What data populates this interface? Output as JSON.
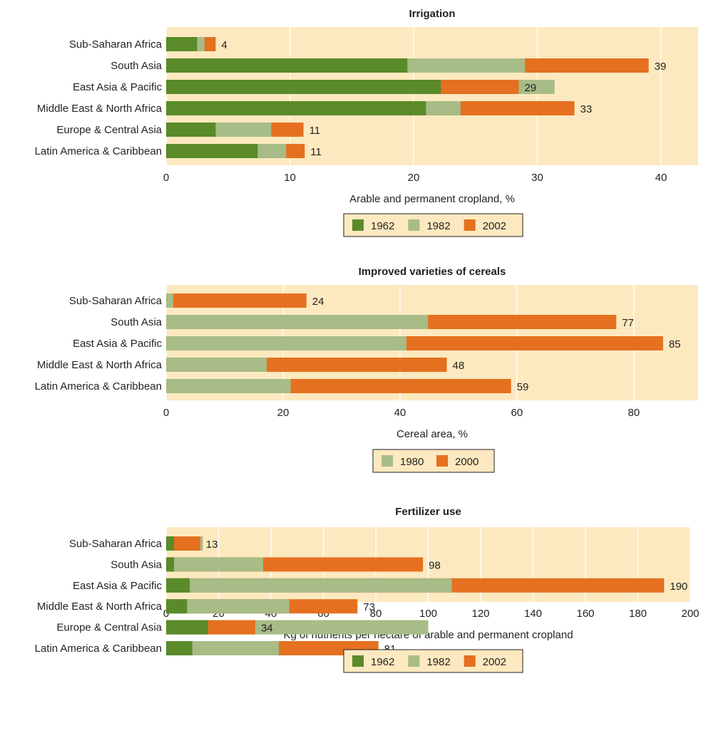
{
  "colors": {
    "plot_bg": "#fde9bf",
    "grid": "#ffffff",
    "dark_green": "#5a8a2a",
    "light_green": "#a7bc86",
    "orange": "#e5701f",
    "legend_border": "#231f20"
  },
  "chart_data": [
    {
      "type": "bar",
      "orientation": "horizontal",
      "title": "Irrigation",
      "xlabel": "Arable and permanent cropland, %",
      "xlim": [
        0,
        43
      ],
      "xticks": [
        0,
        10,
        20,
        30,
        40
      ],
      "grid": true,
      "legend_position": "bottom-center",
      "categories": [
        "Sub-Saharan Africa",
        "South Asia",
        "East Asia & Pacific",
        "Middle East & North Africa",
        "Europe & Central Asia",
        "Latin America & Caribbean"
      ],
      "series": [
        {
          "name": "1962",
          "color_key": "dark_green",
          "values": [
            2.5,
            19.5,
            22.2,
            21.0,
            4.0,
            7.4
          ]
        },
        {
          "name": "1982",
          "color_key": "light_green",
          "values": [
            3.1,
            29.0,
            31.4,
            23.8,
            8.5,
            9.7
          ]
        },
        {
          "name": "2002",
          "color_key": "orange",
          "values": [
            4.0,
            39.0,
            28.5,
            33.0,
            11.1,
            11.2
          ]
        }
      ],
      "value_labels": [
        "4",
        "39",
        "29",
        "33",
        "11",
        "11"
      ]
    },
    {
      "type": "bar",
      "orientation": "horizontal",
      "title": "Improved varieties of cereals",
      "xlabel": "Cereal area, %",
      "xlim": [
        0,
        91
      ],
      "xticks": [
        0,
        20,
        40,
        60,
        80
      ],
      "grid": true,
      "legend_position": "bottom-center",
      "categories": [
        "Sub-Saharan Africa",
        "South Asia",
        "East Asia & Pacific",
        "Middle East & North Africa",
        "Latin America & Caribbean"
      ],
      "series": [
        {
          "name": "1980",
          "color_key": "light_green",
          "values": [
            1.2,
            44.8,
            41.1,
            17.2,
            21.3
          ]
        },
        {
          "name": "2000",
          "color_key": "orange",
          "values": [
            24.0,
            77.0,
            85.0,
            48.0,
            59.0
          ]
        }
      ],
      "value_labels": [
        "24",
        "77",
        "85",
        "48",
        "59"
      ]
    },
    {
      "type": "bar",
      "orientation": "horizontal",
      "title": "Fertilizer use",
      "xlabel": "Kg of nutrients per hectare of arable and permanent cropland",
      "xlim": [
        0,
        200
      ],
      "xticks": [
        0,
        20,
        40,
        60,
        80,
        100,
        120,
        140,
        160,
        180,
        200
      ],
      "grid": true,
      "legend_position": "bottom-center",
      "categories": [
        "Sub-Saharan Africa",
        "South Asia",
        "East Asia & Pacific",
        "Middle East & North Africa",
        "Europe & Central Asia",
        "Latin America & Caribbean"
      ],
      "series": [
        {
          "name": "1962",
          "color_key": "dark_green",
          "values": [
            3,
            3,
            9,
            8,
            16,
            10
          ]
        },
        {
          "name": "1982",
          "color_key": "light_green",
          "values": [
            14,
            37,
            109,
            47,
            100,
            43
          ]
        },
        {
          "name": "2002",
          "color_key": "orange",
          "values": [
            13,
            98,
            190,
            73,
            34,
            81
          ]
        }
      ],
      "value_labels": [
        "13",
        "98",
        "190",
        "73",
        "34",
        "81"
      ]
    }
  ]
}
